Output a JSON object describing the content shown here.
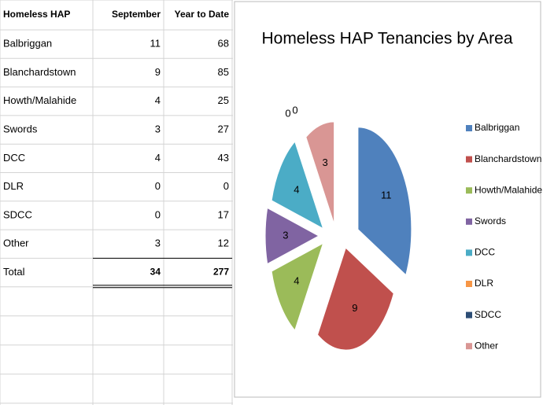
{
  "table": {
    "header": [
      "Homeless HAP",
      "September",
      "Year to Date"
    ],
    "rows": [
      [
        "Balbriggan",
        11,
        68
      ],
      [
        "Blanchardstown",
        9,
        85
      ],
      [
        "Howth/Malahide",
        4,
        25
      ],
      [
        "Swords",
        3,
        27
      ],
      [
        "DCC",
        4,
        43
      ],
      [
        "DLR",
        0,
        0
      ],
      [
        "SDCC",
        0,
        17
      ],
      [
        "Other",
        3,
        12
      ]
    ],
    "total": [
      "Total",
      34,
      277
    ]
  },
  "chart_data": {
    "type": "pie",
    "title": "Homeless HAP Tenancies by Area",
    "categories": [
      "Balbriggan",
      "Blanchardstown",
      "Howth/Malahide",
      "Swords",
      "DCC",
      "DLR",
      "SDCC",
      "Other"
    ],
    "values": [
      11,
      9,
      4,
      3,
      4,
      0,
      0,
      3
    ],
    "colors": [
      "#4f81bd",
      "#c0504d",
      "#9bbb59",
      "#8064a2",
      "#4bacc6",
      "#f79646",
      "#2c4d75",
      "#d99694"
    ],
    "legend": "right"
  }
}
